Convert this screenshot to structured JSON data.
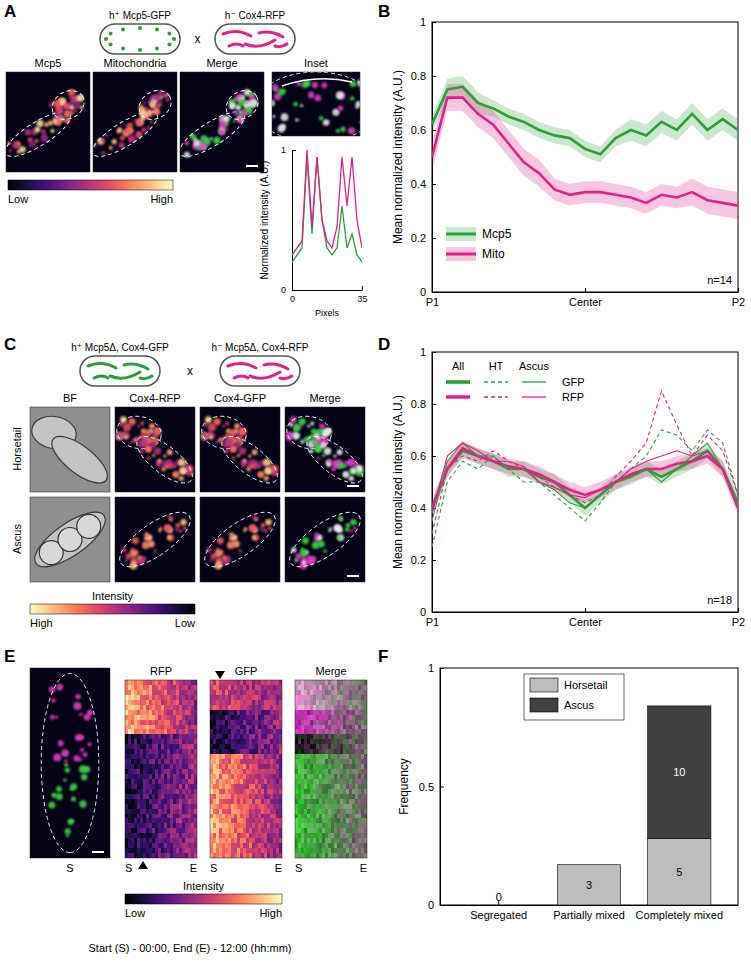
{
  "chart_data": [
    {
      "type": "line",
      "xlabel": "Pixels",
      "ylabel": "Normalized intensity (A.U.)",
      "x": [
        0,
        2.5,
        5,
        7.5,
        10,
        12.5,
        15,
        17.5,
        20,
        22.5,
        25,
        27.5,
        30,
        32.5,
        35
      ],
      "xlim": [
        0,
        35
      ],
      "xticks": [
        0,
        35
      ],
      "ylim": [
        0,
        1
      ],
      "yticks": [
        0,
        1
      ],
      "series": [
        {
          "color": "#2e9e3a",
          "line_style": "solid",
          "values": [
            0.2,
            0.25,
            0.3,
            0.95,
            0.4,
            0.95,
            0.5,
            0.3,
            0.25,
            0.3,
            0.6,
            0.3,
            0.4,
            0.25,
            0.2
          ]
        },
        {
          "color": "#e0218a",
          "line_style": "solid",
          "values": [
            0.25,
            0.3,
            0.35,
            1.0,
            0.45,
            0.95,
            0.5,
            0.35,
            0.3,
            0.45,
            0.95,
            0.6,
            0.95,
            0.5,
            0.3
          ]
        }
      ]
    },
    {
      "type": "line",
      "ylabel": "Mean normalized intensity (A.U.)",
      "annotation": "n=14",
      "legend": "lower left",
      "x": [
        0,
        5,
        10,
        15,
        20,
        25,
        30,
        35,
        40,
        45,
        50,
        55,
        60,
        65,
        70,
        75,
        80,
        85,
        90,
        95,
        100
      ],
      "xlim": [
        0,
        100
      ],
      "xticks": [
        {
          "value": 0,
          "label": "P1"
        },
        {
          "value": 50,
          "label": "Center"
        },
        {
          "value": 100,
          "label": "P2"
        }
      ],
      "ylim": [
        0,
        1
      ],
      "yticks": [
        0,
        0.2,
        0.4,
        0.6,
        0.8,
        1
      ],
      "series": [
        {
          "name": "Mcp5",
          "color": "#2e9e3a",
          "line_style": "solid",
          "values": [
            0.62,
            0.75,
            0.76,
            0.7,
            0.68,
            0.65,
            0.63,
            0.6,
            0.58,
            0.57,
            0.53,
            0.51,
            0.57,
            0.6,
            0.58,
            0.63,
            0.6,
            0.66,
            0.6,
            0.64,
            0.6
          ],
          "errors": [
            0.03,
            0.04,
            0.04,
            0.04,
            0.03,
            0.03,
            0.03,
            0.03,
            0.03,
            0.03,
            0.03,
            0.03,
            0.03,
            0.04,
            0.04,
            0.04,
            0.04,
            0.04,
            0.04,
            0.04,
            0.04
          ]
        },
        {
          "name": "Mito",
          "color": "#e0218a",
          "line_style": "solid",
          "values": [
            0.5,
            0.72,
            0.72,
            0.66,
            0.62,
            0.55,
            0.48,
            0.44,
            0.38,
            0.36,
            0.37,
            0.37,
            0.36,
            0.35,
            0.33,
            0.36,
            0.35,
            0.37,
            0.34,
            0.33,
            0.32
          ],
          "errors": [
            0.05,
            0.05,
            0.05,
            0.05,
            0.05,
            0.05,
            0.05,
            0.05,
            0.04,
            0.04,
            0.04,
            0.04,
            0.04,
            0.04,
            0.04,
            0.04,
            0.04,
            0.05,
            0.05,
            0.05,
            0.05
          ]
        }
      ]
    },
    {
      "type": "line",
      "ylabel": "Mean normalized intensity (A.U.)",
      "annotation": "n=18",
      "legend": "upper left",
      "x": [
        0,
        5,
        10,
        15,
        20,
        25,
        30,
        35,
        40,
        45,
        50,
        55,
        60,
        65,
        70,
        75,
        80,
        85,
        90,
        95,
        100
      ],
      "xlim": [
        0,
        100
      ],
      "xticks": [
        {
          "value": 0,
          "label": "P1"
        },
        {
          "value": 50,
          "label": "Center"
        },
        {
          "value": 100,
          "label": "P2"
        }
      ],
      "ylim": [
        0,
        1
      ],
      "yticks": [
        0,
        0.2,
        0.4,
        0.6,
        0.8,
        1
      ],
      "series": [
        {
          "name": "GFP",
          "group": "All",
          "color": "#2e9e3a",
          "line_style": "solid",
          "values": [
            0.4,
            0.55,
            0.62,
            0.6,
            0.58,
            0.55,
            0.55,
            0.52,
            0.5,
            0.45,
            0.4,
            0.45,
            0.5,
            0.52,
            0.55,
            0.52,
            0.55,
            0.58,
            0.62,
            0.55,
            0.42
          ],
          "errors": [
            0.03,
            0.03,
            0.03,
            0.03,
            0.03,
            0.03,
            0.03,
            0.03,
            0.03,
            0.03,
            0.03,
            0.03,
            0.03,
            0.03,
            0.03,
            0.03,
            0.03,
            0.03,
            0.03,
            0.03,
            0.03
          ]
        },
        {
          "name": "RFP",
          "group": "All",
          "color": "#e0218a",
          "line_style": "solid",
          "values": [
            0.4,
            0.55,
            0.63,
            0.6,
            0.58,
            0.56,
            0.55,
            0.53,
            0.5,
            0.47,
            0.45,
            0.47,
            0.5,
            0.53,
            0.55,
            0.55,
            0.57,
            0.58,
            0.6,
            0.55,
            0.4
          ],
          "errors": [
            0.03,
            0.03,
            0.03,
            0.03,
            0.03,
            0.03,
            0.03,
            0.03,
            0.03,
            0.03,
            0.03,
            0.03,
            0.03,
            0.03,
            0.03,
            0.03,
            0.03,
            0.03,
            0.03,
            0.03,
            0.03
          ]
        },
        {
          "name": "GFP",
          "group": "HT",
          "color": "#2e9e3a",
          "line_style": "dashed",
          "values": [
            0.25,
            0.5,
            0.58,
            0.55,
            0.6,
            0.55,
            0.5,
            0.5,
            0.45,
            0.4,
            0.35,
            0.42,
            0.5,
            0.55,
            0.6,
            0.7,
            0.68,
            0.62,
            0.7,
            0.65,
            0.45
          ]
        },
        {
          "name": "RFP",
          "group": "HT",
          "color": "#e0218a",
          "line_style": "dashed",
          "values": [
            0.3,
            0.55,
            0.6,
            0.58,
            0.62,
            0.58,
            0.55,
            0.52,
            0.48,
            0.45,
            0.42,
            0.45,
            0.52,
            0.58,
            0.65,
            0.85,
            0.72,
            0.6,
            0.68,
            0.62,
            0.45
          ]
        },
        {
          "name": "GFP",
          "group": "Ascus",
          "color": "#2e9e3a",
          "line_style": "solid",
          "values": [
            0.35,
            0.58,
            0.65,
            0.6,
            0.6,
            0.55,
            0.55,
            0.5,
            0.47,
            0.42,
            0.4,
            0.45,
            0.5,
            0.52,
            0.55,
            0.5,
            0.55,
            0.6,
            0.65,
            0.55,
            0.4
          ]
        },
        {
          "name": "RFP",
          "group": "Ascus",
          "color": "#e0218a",
          "line_style": "solid",
          "values": [
            0.38,
            0.6,
            0.65,
            0.62,
            0.58,
            0.58,
            0.56,
            0.5,
            0.48,
            0.45,
            0.44,
            0.47,
            0.5,
            0.55,
            0.58,
            0.6,
            0.62,
            0.6,
            0.62,
            0.55,
            0.4
          ]
        }
      ]
    },
    {
      "type": "bar",
      "stacked": true,
      "ylabel": "Frequency",
      "legend": "upper center",
      "categories": [
        "Segregated",
        "Partially mixed",
        "Completely mixed"
      ],
      "ylim": [
        0,
        1
      ],
      "yticks": [
        0,
        0.5,
        1
      ],
      "series": [
        {
          "name": "Horsetail",
          "color": "#bdbdbd",
          "values": [
            0,
            0.17,
            0.28
          ],
          "counts": [
            0,
            3,
            5
          ]
        },
        {
          "name": "Ascus",
          "color": "#404040",
          "values": [
            0,
            0,
            0.56
          ],
          "counts": [
            null,
            null,
            10
          ]
        }
      ]
    }
  ],
  "panels": {
    "A": {
      "letter": "A",
      "cross": [
        "h⁺ Mcp5-GFP",
        "x",
        "h⁻ Cox4-RFP"
      ],
      "images": [
        "Mcp5",
        "Mitochondria",
        "Merge",
        "Inset"
      ],
      "colorbar": [
        "Low",
        "High"
      ]
    },
    "B": {
      "letter": "B"
    },
    "C": {
      "letter": "C",
      "cross": [
        "h⁺ Mcp5Δ, Cox4-GFP",
        "x",
        "h⁻ Mcp5Δ, Cox4-RFP"
      ],
      "images": [
        "BF",
        "Cox4-RFP",
        "Cox4-GFP",
        "Merge"
      ],
      "rows": [
        "Horsetail",
        "Ascus"
      ],
      "colorbar": [
        "High",
        "Low"
      ],
      "colorbar_title": "Intensity"
    },
    "D": {
      "letter": "D"
    },
    "E": {
      "letter": "E",
      "images": [
        "RFP",
        "GFP",
        "Merge"
      ],
      "time_marks": [
        "S",
        "E"
      ],
      "colorbar": [
        "Low",
        "High"
      ],
      "colorbar_title": "Intensity",
      "caption": "Start (S) - 00:00, End (E) - 12:00 (hh:mm)"
    },
    "F": {
      "letter": "F"
    }
  }
}
